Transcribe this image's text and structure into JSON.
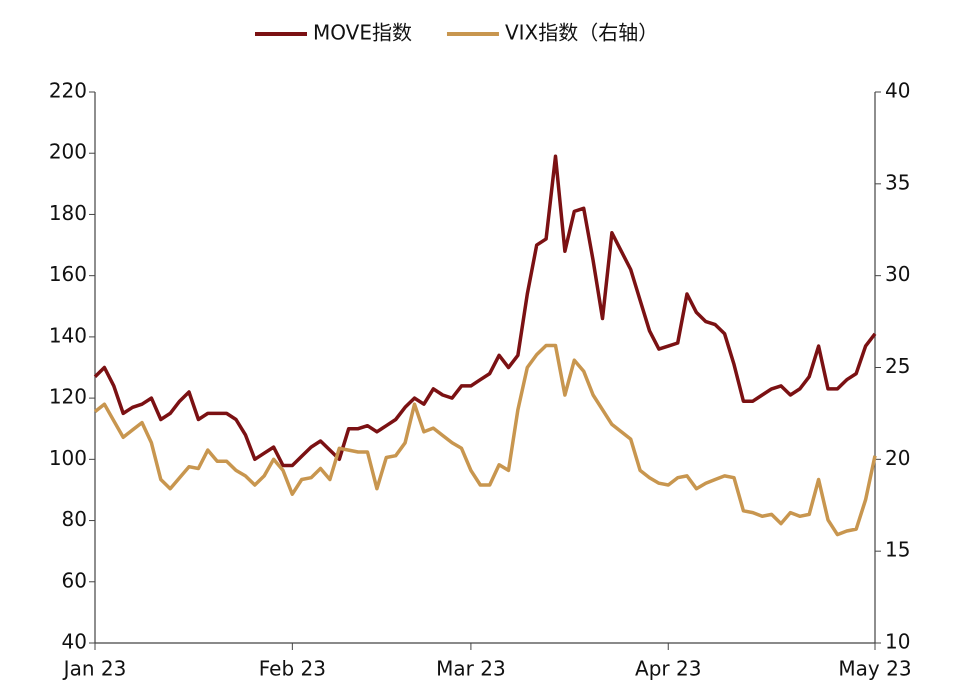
{
  "chart_data": {
    "type": "line",
    "categories": [
      "Jan 23",
      null,
      null,
      null,
      null,
      null,
      null,
      null,
      null,
      null,
      null,
      null,
      null,
      null,
      null,
      null,
      null,
      null,
      null,
      null,
      null,
      "Feb 23",
      null,
      null,
      null,
      null,
      null,
      null,
      null,
      null,
      null,
      null,
      null,
      null,
      null,
      null,
      null,
      null,
      null,
      null,
      "Mar 23",
      null,
      null,
      null,
      null,
      null,
      null,
      null,
      null,
      null,
      null,
      null,
      null,
      null,
      null,
      null,
      null,
      null,
      null,
      null,
      null,
      "Apr 23",
      null,
      null,
      null,
      null,
      null,
      null,
      null,
      null,
      null,
      null,
      null,
      null,
      null,
      null,
      null,
      null,
      null,
      null,
      null,
      null,
      null,
      "May 23"
    ],
    "series": [
      {
        "name": "MOVE指数",
        "color": "#7b1113",
        "values": [
          127,
          130,
          124,
          115,
          117,
          118,
          120,
          113,
          115,
          119,
          122,
          113,
          115,
          115,
          115,
          113,
          108,
          100,
          102,
          104,
          98,
          98,
          101,
          104,
          106,
          103,
          100,
          110,
          110,
          111,
          109,
          111,
          113,
          117,
          120,
          118,
          123,
          121,
          120,
          124,
          124,
          126,
          128,
          134,
          130,
          134,
          154,
          170,
          172,
          199,
          168,
          181,
          182,
          165,
          146,
          174,
          168,
          162,
          152,
          142,
          136,
          137,
          138,
          154,
          148,
          145,
          144,
          141,
          131,
          119,
          119,
          121,
          123,
          124,
          121,
          123,
          127,
          137,
          123,
          123,
          126,
          128,
          137,
          141
        ]
      },
      {
        "name": "VIX指数（右轴）",
        "color": "#c8964f",
        "axis": "y2",
        "values": [
          22.6,
          23.0,
          22.1,
          21.2,
          21.6,
          22.0,
          20.9,
          18.9,
          18.4,
          19.0,
          19.6,
          19.5,
          20.5,
          19.9,
          19.9,
          19.4,
          19.1,
          18.6,
          19.1,
          20.0,
          19.4,
          18.1,
          18.9,
          19.0,
          19.5,
          18.9,
          20.6,
          20.5,
          20.4,
          20.4,
          18.4,
          20.1,
          20.2,
          20.9,
          23.0,
          21.5,
          21.7,
          21.3,
          20.9,
          20.6,
          19.4,
          18.6,
          18.6,
          19.7,
          19.4,
          22.7,
          25.0,
          25.7,
          26.2,
          26.2,
          23.5,
          25.4,
          24.8,
          23.5,
          22.7,
          21.9,
          21.5,
          21.1,
          19.4,
          19.0,
          18.7,
          18.6,
          19.0,
          19.1,
          18.4,
          18.7,
          18.9,
          19.1,
          19.0,
          17.2,
          17.1,
          16.9,
          17.0,
          16.5,
          17.1,
          16.9,
          17.0,
          18.9,
          16.7,
          15.9,
          16.1,
          16.2,
          17.8,
          20.2
        ]
      }
    ],
    "ylim": [
      40,
      220
    ],
    "yticks": [
      40,
      60,
      80,
      100,
      120,
      140,
      160,
      180,
      200,
      220
    ],
    "y2lim": [
      10,
      40
    ],
    "y2ticks": [
      10,
      15,
      20,
      25,
      30,
      35,
      40
    ],
    "legend": "top"
  }
}
